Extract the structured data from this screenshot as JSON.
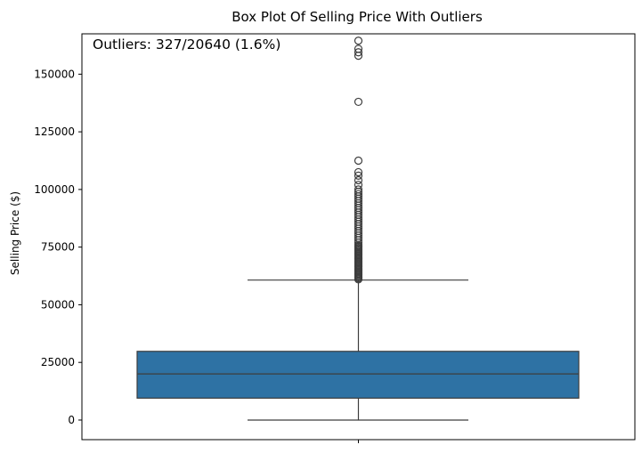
{
  "chart_data": {
    "type": "box",
    "title": "Box Plot Of Selling Price With Outliers",
    "xlabel": "",
    "ylabel": "Selling Price ($)",
    "annotation": "Outliers: 327/20640 (1.6%)",
    "ylim": [
      -8500,
      167500
    ],
    "yticks": [
      0,
      25000,
      50000,
      75000,
      100000,
      125000,
      150000
    ],
    "ytick_labels": [
      "0",
      "25000",
      "50000",
      "75000",
      "100000",
      "125000",
      "150000"
    ],
    "grid": false,
    "series": [
      {
        "whisker_low": 0,
        "q1": 9500,
        "median": 20000,
        "q3": 29800,
        "whisker_high": 60700,
        "outliers": [
          61000,
          61500,
          62000,
          62500,
          63000,
          63500,
          64000,
          64500,
          65000,
          65500,
          66000,
          66500,
          67000,
          67500,
          68000,
          68500,
          69000,
          69500,
          70000,
          70500,
          71000,
          71500,
          72000,
          72500,
          73000,
          73500,
          74000,
          74500,
          75000,
          75500,
          76000,
          77000,
          78000,
          79000,
          80000,
          81000,
          82000,
          83000,
          84000,
          85000,
          86000,
          87000,
          88000,
          89000,
          90000,
          91000,
          92000,
          93000,
          94000,
          95000,
          96000,
          97000,
          98000,
          99000,
          100000,
          102000,
          104000,
          106000,
          107500,
          112500,
          138000,
          158000,
          159500,
          161000,
          164500
        ]
      }
    ],
    "colors": {
      "box_fill": "#2e72a4",
      "line": "#3d3d3d"
    }
  }
}
